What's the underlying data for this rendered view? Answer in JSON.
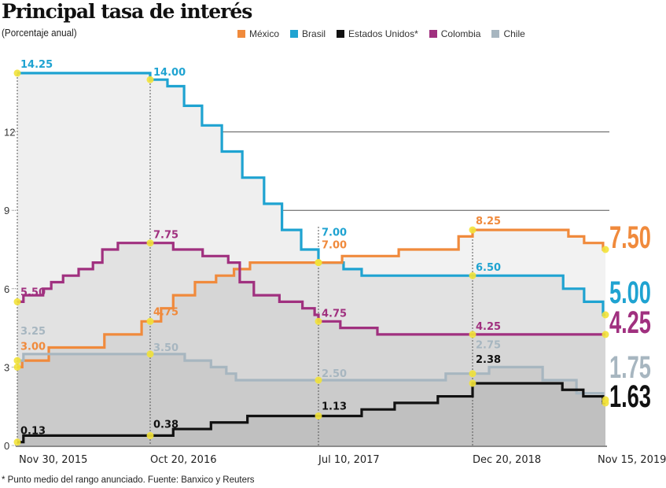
{
  "chart_data": {
    "type": "line",
    "step": true,
    "title": "Principal tasa de interés",
    "subtitle": "(Porcentaje anual)",
    "ylim": [
      0,
      15
    ],
    "y_ticks": [
      "0",
      "3",
      "6",
      "9",
      "12"
    ],
    "y_tick_values": [
      0,
      3,
      6,
      9,
      12
    ],
    "x_ticks": [
      "Nov 30, 2015",
      "Oct 20, 2016",
      "Jul 10, 2017",
      "Dec 20, 2018",
      "Nov 15, 2019"
    ],
    "x_tick_dates": [
      "2015-11-30",
      "2016-10-20",
      "2017-07-10",
      "2018-12-20",
      "2019-11-15"
    ],
    "grid": "horizontal lines at 9 and 12",
    "legend_position": "top",
    "series": [
      {
        "name": "Brasil",
        "color": "#1FA3D1",
        "steps": [
          [
            "2015-11-30",
            14.25
          ],
          [
            "2016-10-20",
            14.0
          ],
          [
            "2016-11-16",
            13.75
          ],
          [
            "2016-12-12",
            13.0
          ],
          [
            "2017-01-09",
            12.25
          ],
          [
            "2017-02-09",
            11.25
          ],
          [
            "2017-03-13",
            10.25
          ],
          [
            "2017-04-16",
            9.25
          ],
          [
            "2017-05-14",
            8.25
          ],
          [
            "2017-06-13",
            7.5
          ],
          [
            "2017-07-10",
            7.0
          ],
          [
            "2017-10-04",
            6.75
          ],
          [
            "2017-12-05",
            6.5
          ],
          [
            "2019-08-02",
            6.0
          ],
          [
            "2019-09-23",
            5.5
          ],
          [
            "2019-11-09",
            5.0
          ]
        ],
        "point_labels": [
          "14.25",
          "14.00",
          "7.00",
          "6.50"
        ],
        "end_label": "5.00"
      },
      {
        "name": "México",
        "color": "#F08A3C",
        "steps": [
          [
            "2015-11-30",
            3.0
          ],
          [
            "2015-12-12",
            3.25
          ],
          [
            "2016-02-15",
            3.75
          ],
          [
            "2016-06-30",
            4.25
          ],
          [
            "2016-09-29",
            4.75
          ],
          [
            "2016-11-06",
            5.25
          ],
          [
            "2016-11-25",
            5.75
          ],
          [
            "2016-12-29",
            6.25
          ],
          [
            "2017-01-31",
            6.5
          ],
          [
            "2017-02-28",
            6.75
          ],
          [
            "2017-03-25",
            7.0
          ],
          [
            "2017-09-29",
            7.25
          ],
          [
            "2018-04-11",
            7.5
          ],
          [
            "2018-11-02",
            8.0
          ],
          [
            "2018-12-20",
            8.25
          ],
          [
            "2019-08-15",
            8.0
          ],
          [
            "2019-09-23",
            7.75
          ],
          [
            "2019-11-09",
            7.5
          ]
        ],
        "point_labels": [
          "3.00",
          "4.75",
          "7.00",
          "8.25"
        ],
        "end_label": "7.50"
      },
      {
        "name": "Colombia",
        "color": "#A0307F",
        "steps": [
          [
            "2015-11-30",
            5.5
          ],
          [
            "2015-12-15",
            5.75
          ],
          [
            "2016-02-01",
            6.0
          ],
          [
            "2016-02-21",
            6.25
          ],
          [
            "2016-03-21",
            6.5
          ],
          [
            "2016-04-28",
            6.75
          ],
          [
            "2016-06-02",
            7.0
          ],
          [
            "2016-06-25",
            7.5
          ],
          [
            "2016-08-02",
            7.75
          ],
          [
            "2016-11-25",
            7.5
          ],
          [
            "2017-01-10",
            7.25
          ],
          [
            "2017-02-19",
            7.0
          ],
          [
            "2017-03-09",
            6.25
          ],
          [
            "2017-03-31",
            5.75
          ],
          [
            "2017-05-10",
            5.5
          ],
          [
            "2017-06-15",
            5.25
          ],
          [
            "2017-07-04",
            5.0
          ],
          [
            "2017-07-10",
            4.75
          ],
          [
            "2017-09-23",
            4.5
          ],
          [
            "2018-01-28",
            4.25
          ]
        ],
        "point_labels": [
          "5.50",
          "7.75",
          "4.75",
          "4.25"
        ],
        "end_label": "4.25"
      },
      {
        "name": "Chile",
        "color": "#A7B6C0",
        "steps": [
          [
            "2015-11-30",
            3.25
          ],
          [
            "2015-12-15",
            3.5
          ],
          [
            "2016-12-13",
            3.25
          ],
          [
            "2017-01-23",
            3.0
          ],
          [
            "2017-02-16",
            2.75
          ],
          [
            "2017-03-03",
            2.5
          ],
          [
            "2018-09-19",
            2.75
          ],
          [
            "2019-01-30",
            3.0
          ],
          [
            "2019-06-12",
            2.5
          ],
          [
            "2019-09-04",
            2.0
          ],
          [
            "2019-11-09",
            1.75
          ]
        ],
        "point_labels": [
          "3.25",
          "3.50",
          "2.50",
          "2.75"
        ],
        "end_label": "1.75"
      },
      {
        "name": "Estados Unidos*",
        "color": "#111111",
        "steps": [
          [
            "2015-11-30",
            0.13
          ],
          [
            "2015-12-15",
            0.38
          ],
          [
            "2016-11-25",
            0.63
          ],
          [
            "2017-01-23",
            0.88
          ],
          [
            "2017-03-21",
            1.13
          ],
          [
            "2017-12-05",
            1.38
          ],
          [
            "2018-03-28",
            1.63
          ],
          [
            "2018-08-23",
            1.88
          ],
          [
            "2018-12-20",
            2.38
          ],
          [
            "2019-07-31",
            2.13
          ],
          [
            "2019-09-21",
            1.88
          ],
          [
            "2019-11-09",
            1.63
          ]
        ],
        "point_labels": [
          "0.13",
          "0.38",
          "1.13",
          "2.38"
        ],
        "end_label": "1.63"
      }
    ]
  },
  "legend": [
    {
      "label": "México",
      "color": "#F08A3C"
    },
    {
      "label": "Brasil",
      "color": "#1FA3D1"
    },
    {
      "label": "Estados Unidos*",
      "color": "#111111"
    },
    {
      "label": "Colombia",
      "color": "#A0307F"
    },
    {
      "label": "Chile",
      "color": "#A7B6C0"
    }
  ],
  "footnote": "* Punto medio del rango anunciado. Fuente: Banxico y Reuters"
}
